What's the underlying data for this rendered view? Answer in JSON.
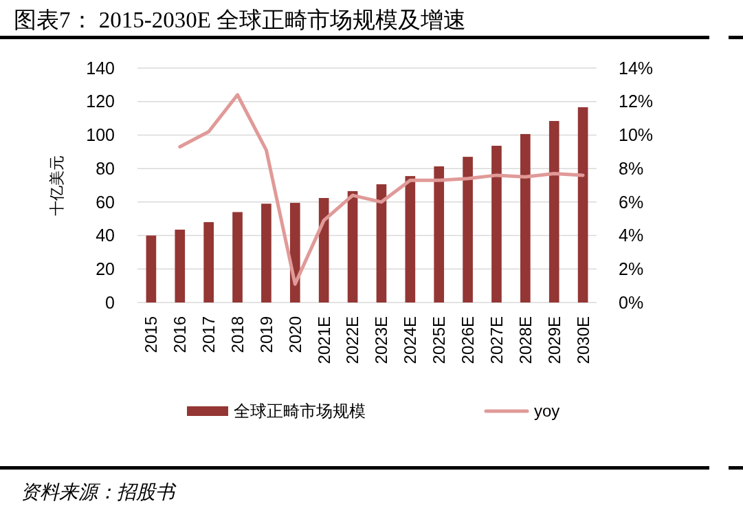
{
  "chart_data": {
    "type": "bar",
    "title": "图表7： 2015-2030E 全球正畸市场规模及增速",
    "categories": [
      "2015",
      "2016",
      "2017",
      "2018",
      "2019",
      "2020",
      "2021E",
      "2022E",
      "2023E",
      "2024E",
      "2025E",
      "2026E",
      "2027E",
      "2028E",
      "2029E",
      "2030E"
    ],
    "series": [
      {
        "name": "全球正畸市场规模",
        "color": "#943634",
        "values": [
          40,
          43.5,
          48,
          54,
          59,
          59.5,
          62.4,
          66.5,
          70.6,
          75.5,
          81.3,
          87,
          93.6,
          100.6,
          108.4,
          116.6
        ]
      },
      {
        "name": "yoy",
        "type": "line",
        "axis": "y2",
        "color": "#e09a98",
        "values": [
          null,
          9.3,
          10.2,
          12.4,
          9.1,
          1.1,
          4.9,
          6.4,
          6.0,
          7.3,
          7.3,
          7.4,
          7.6,
          7.5,
          7.7,
          7.6
        ]
      }
    ],
    "ylabel": "十亿美元",
    "ylim": [
      0,
      140
    ],
    "yticks": [
      0,
      20,
      40,
      60,
      80,
      100,
      120,
      140
    ],
    "y2lim": [
      0,
      14
    ],
    "y2ticks": [
      {
        "value": 0,
        "label": "0%"
      },
      {
        "value": 2,
        "label": "2%"
      },
      {
        "value": 4,
        "label": "4%"
      },
      {
        "value": 6,
        "label": "6%"
      },
      {
        "value": 8,
        "label": "8%"
      },
      {
        "value": 10,
        "label": "10%"
      },
      {
        "value": 12,
        "label": "12%"
      },
      {
        "value": 14,
        "label": "14%"
      }
    ],
    "grid": "y",
    "legend": "bottom",
    "marker": "none",
    "line_style": "solid",
    "annotations": [
      "资料来源：招股书"
    ]
  }
}
